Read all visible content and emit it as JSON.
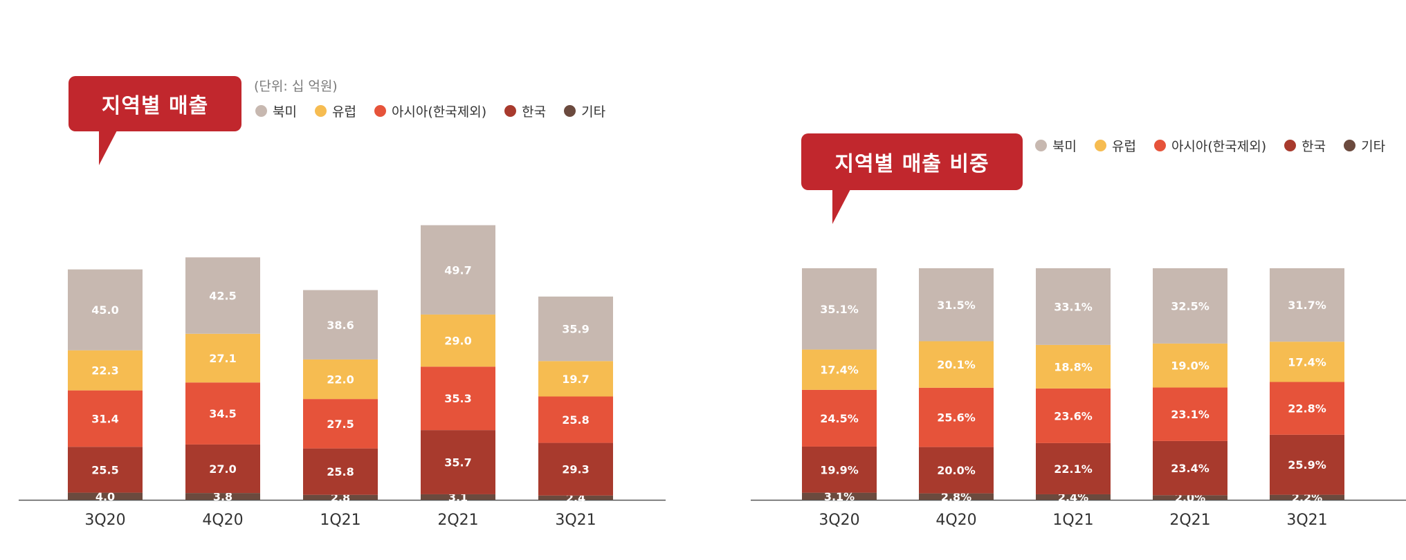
{
  "colors": {
    "north_america": "#c7b8b0",
    "europe": "#f6bc51",
    "asia": "#e6533a",
    "korea": "#a83a2d",
    "other": "#6b4a3e",
    "badge": "#c1272d"
  },
  "legend": [
    "북미",
    "유럽",
    "아시아(한국제외)",
    "한국",
    "기타"
  ],
  "left_chart": {
    "title": "지역별 매출",
    "unit_note": "(단위: 십 억원)"
  },
  "right_chart": {
    "title": "지역별 매출 비중"
  },
  "chart_data": [
    {
      "type": "bar",
      "stacked": true,
      "title": "지역별 매출",
      "subtitle": "(단위: 십 억원)",
      "categories": [
        "3Q20",
        "4Q20",
        "1Q21",
        "2Q21",
        "3Q21"
      ],
      "legend_position": "top",
      "grid": false,
      "series": [
        {
          "name": "기타",
          "values": [
            4.0,
            3.8,
            2.8,
            3.1,
            2.4
          ],
          "labels": [
            "4.0",
            "3.8",
            "2.8",
            "3.1",
            "2.4"
          ]
        },
        {
          "name": "한국",
          "values": [
            25.5,
            27.0,
            25.8,
            35.7,
            29.3
          ],
          "labels": [
            "25.5",
            "27.0",
            "25.8",
            "35.7",
            "29.3"
          ]
        },
        {
          "name": "아시아(한국제외)",
          "values": [
            31.4,
            34.5,
            27.5,
            35.3,
            25.8
          ],
          "labels": [
            "31.4",
            "34.5",
            "27.5",
            "35.3",
            "25.8"
          ]
        },
        {
          "name": "유럽",
          "values": [
            22.3,
            27.1,
            22.0,
            29.0,
            19.7
          ],
          "labels": [
            "22.3",
            "27.1",
            "22.0",
            "29.0",
            "19.7"
          ]
        },
        {
          "name": "북미",
          "values": [
            45.0,
            42.5,
            38.6,
            49.7,
            35.9
          ],
          "labels": [
            "45.0",
            "42.5",
            "38.6",
            "49.7",
            "35.9"
          ]
        }
      ]
    },
    {
      "type": "bar",
      "stacked": true,
      "title": "지역별 매출 비중",
      "categories": [
        "3Q20",
        "4Q20",
        "1Q21",
        "2Q21",
        "3Q21"
      ],
      "legend_position": "top",
      "grid": false,
      "ylim": [
        0,
        100
      ],
      "series": [
        {
          "name": "기타",
          "values": [
            3.1,
            2.8,
            2.4,
            2.0,
            2.2
          ],
          "labels": [
            "3.1%",
            "2.8%",
            "2.4%",
            "2.0%",
            "2.2%"
          ]
        },
        {
          "name": "한국",
          "values": [
            19.9,
            20.0,
            22.1,
            23.4,
            25.9
          ],
          "labels": [
            "19.9%",
            "20.0%",
            "22.1%",
            "23.4%",
            "25.9%"
          ]
        },
        {
          "name": "아시아(한국제외)",
          "values": [
            24.5,
            25.6,
            23.6,
            23.1,
            22.8
          ],
          "labels": [
            "24.5%",
            "25.6%",
            "23.6%",
            "23.1%",
            "22.8%"
          ]
        },
        {
          "name": "유럽",
          "values": [
            17.4,
            20.1,
            18.8,
            19.0,
            17.4
          ],
          "labels": [
            "17.4%",
            "20.1%",
            "18.8%",
            "19.0%",
            "17.4%"
          ]
        },
        {
          "name": "북미",
          "values": [
            35.1,
            31.5,
            33.1,
            32.5,
            31.7
          ],
          "labels": [
            "35.1%",
            "31.5%",
            "33.1%",
            "32.5%",
            "31.7%"
          ]
        }
      ]
    }
  ]
}
